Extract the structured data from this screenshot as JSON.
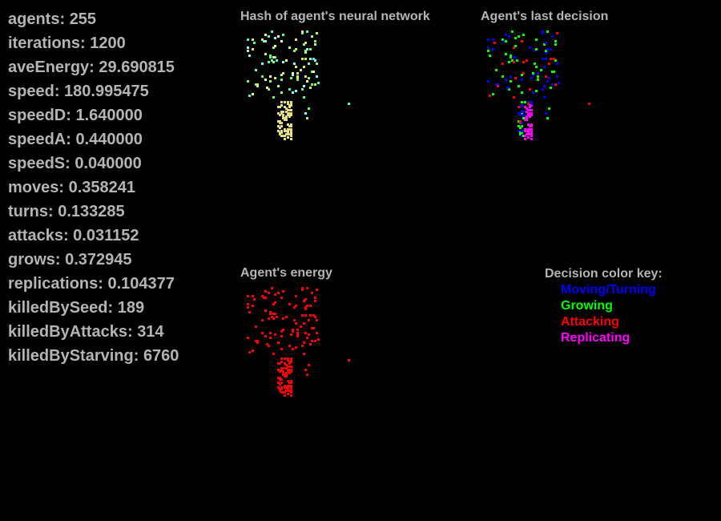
{
  "stats": [
    {
      "label": "agents",
      "value": "255"
    },
    {
      "label": "iterations",
      "value": "1200"
    },
    {
      "label": "aveEnergy",
      "value": "29.690815"
    },
    {
      "label": "speed",
      "value": "180.995475"
    },
    {
      "label": "speedD",
      "value": "1.640000"
    },
    {
      "label": "speedA",
      "value": "0.440000"
    },
    {
      "label": "speedS",
      "value": "0.040000"
    },
    {
      "label": "moves",
      "value": "0.358241"
    },
    {
      "label": "turns",
      "value": "0.133285"
    },
    {
      "label": "attacks",
      "value": "0.031152"
    },
    {
      "label": "grows",
      "value": "0.372945"
    },
    {
      "label": "replications",
      "value": "0.104377"
    },
    {
      "label": "killedBySeed",
      "value": "189"
    },
    {
      "label": "killedByAttacks",
      "value": "314"
    },
    {
      "label": "killedByStarving",
      "value": "6760"
    }
  ],
  "panels": {
    "hash_title": "Hash of agent's neural network",
    "decision_title": "Agent's last decision",
    "energy_title": "Agent's energy"
  },
  "legend": {
    "title": "Decision color key:",
    "items": [
      {
        "label": "Moving/Turning",
        "color": "#0000ff"
      },
      {
        "label": "Growing",
        "color": "#00ff00"
      },
      {
        "label": "Attacking",
        "color": "#ff0000"
      },
      {
        "label": "Replicating",
        "color": "#ff00ff"
      }
    ]
  },
  "colors": {
    "background": "#000000",
    "text": "#b4b4b4",
    "energy": "#ff0000",
    "hash_palette": [
      "#ffff80",
      "#80ff80",
      "#c0ff40",
      "#40ffc0",
      "#80ffff",
      "#e0e080",
      "#60ff60"
    ]
  }
}
